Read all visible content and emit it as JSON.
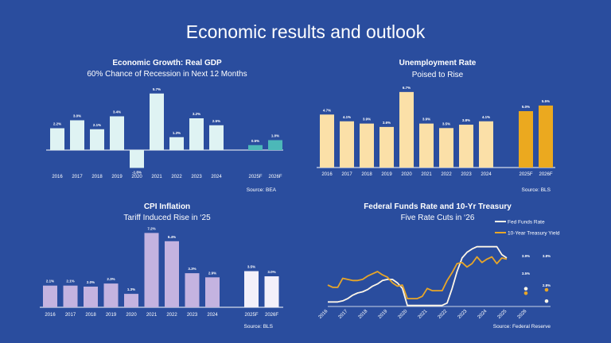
{
  "page_title": "Economic results and outlook",
  "chart_data": [
    {
      "id": "gdp",
      "type": "bar",
      "title": "Economic Growth: Real GDP",
      "subtitle": "60% Chance of Recession in Next 12 Months",
      "categories": [
        "2016",
        "2017",
        "2018",
        "2019",
        "2020",
        "2021",
        "2022",
        "2023",
        "2024",
        "2025F",
        "2026F"
      ],
      "values": [
        2.2,
        3.0,
        2.1,
        3.4,
        -1.8,
        5.7,
        1.3,
        3.2,
        2.5,
        0.5,
        1.0
      ],
      "labels": [
        "2.2%",
        "3.0%",
        "2.1%",
        "3.4%",
        "-1.8%",
        "5.7%",
        "1.3%",
        "3.2%",
        "2.5%",
        "0.5%",
        "1.0%"
      ],
      "colors": {
        "actual": "#dff3f3",
        "forecast": "#4cb8b8"
      },
      "source": "Source: BEA"
    },
    {
      "id": "unemp",
      "type": "bar",
      "title": "Unemployment Rate",
      "subtitle": "Poised to Rise",
      "categories": [
        "2016",
        "2017",
        "2018",
        "2019",
        "2020",
        "2021",
        "2022",
        "2023",
        "2024",
        "2025F",
        "2026F"
      ],
      "values": [
        4.7,
        4.1,
        3.9,
        3.6,
        6.7,
        3.9,
        3.5,
        3.8,
        4.1,
        5.0,
        5.5
      ],
      "labels": [
        "4.7%",
        "4.1%",
        "3.9%",
        "3.6%",
        "6.7%",
        "3.9%",
        "3.5%",
        "3.8%",
        "4.1%",
        "5.0%",
        "5.5%"
      ],
      "colors": {
        "actual": "#fbe0a8",
        "forecast": "#eba91f"
      },
      "source": "Source: BLS"
    },
    {
      "id": "cpi",
      "type": "bar",
      "title": "CPI Inflation",
      "subtitle": "Tariff Induced Rise in ‘25",
      "categories": [
        "2016",
        "2017",
        "2018",
        "2019",
        "2020",
        "2021",
        "2022",
        "2023",
        "2024",
        "2025F",
        "2026F"
      ],
      "values": [
        2.1,
        2.1,
        2.0,
        2.3,
        1.3,
        7.2,
        6.4,
        3.3,
        2.9,
        3.5,
        3.0
      ],
      "labels": [
        "2.1%",
        "2.1%",
        "2.0%",
        "2.3%",
        "1.3%",
        "7.2%",
        "6.4%",
        "3.3%",
        "2.9%",
        "3.5%",
        "3.0%"
      ],
      "colors": {
        "actual": "#c4b3e0",
        "forecast": "#f3f0fa"
      },
      "source": "Source: BLS"
    },
    {
      "id": "rates",
      "type": "line",
      "title": "Federal Funds Rate and 10-Yr Treasury",
      "subtitle": "Five Rate Cuts in ‘26",
      "x_ticks": [
        "2016",
        "2017",
        "2018",
        "2019",
        "2020",
        "2021",
        "2022",
        "2023",
        "2024",
        "2025",
        "2026"
      ],
      "x_start": 2016,
      "x_step": 0.25,
      "series": [
        {
          "name": "Fed Funds Rate",
          "color": "#fdf6e8",
          "values": [
            0.4,
            0.4,
            0.4,
            0.5,
            0.7,
            1.0,
            1.2,
            1.3,
            1.5,
            1.8,
            2.0,
            2.3,
            2.4,
            2.4,
            2.1,
            1.6,
            0.1,
            0.1,
            0.1,
            0.1,
            0.1,
            0.1,
            0.1,
            0.1,
            0.3,
            1.6,
            3.1,
            4.3,
            4.8,
            5.1,
            5.3,
            5.3,
            5.3,
            5.3,
            5.3,
            4.6,
            4.3
          ],
          "forecast": [
            {
              "x": "2025F",
              "value": 3.9,
              "label": "3.9%"
            },
            {
              "x": "2026F",
              "value": 2.8,
              "label": "2.8%"
            }
          ]
        },
        {
          "name": "10-Year Treasury Yield",
          "color": "#e8a628",
          "values": [
            1.9,
            1.7,
            1.7,
            2.5,
            2.4,
            2.3,
            2.3,
            2.4,
            2.7,
            2.9,
            3.1,
            2.8,
            2.6,
            2.1,
            1.8,
            1.9,
            0.7,
            0.7,
            0.7,
            0.9,
            1.6,
            1.4,
            1.4,
            1.4,
            2.3,
            3.0,
            3.8,
            3.9,
            3.5,
            3.8,
            4.4,
            3.9,
            4.2,
            4.4,
            3.8,
            4.3,
            4.2
          ],
          "forecast": [
            {
              "x": "2025F",
              "value": 3.5,
              "label": "3.5%"
            },
            {
              "x": "2026F",
              "value": 3.8,
              "label": "3.8%"
            }
          ]
        }
      ],
      "legend_position": "top-right",
      "source": "Source: Federal Reserve"
    }
  ]
}
